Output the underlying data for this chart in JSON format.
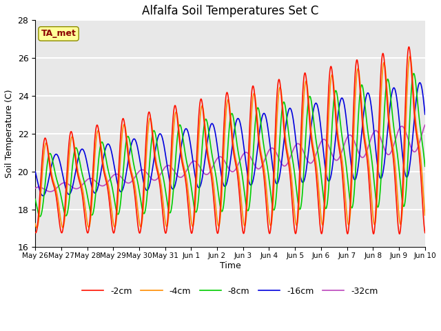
{
  "title": "Alfalfa Soil Temperatures Set C",
  "xlabel": "Time",
  "ylabel": "Soil Temperature (C)",
  "ylim": [
    16,
    28
  ],
  "annotation": "TA_met",
  "annotation_color": "#8B0000",
  "annotation_bg": "#FFFF99",
  "annotation_edge": "#8B8B00",
  "plot_bg": "#E8E8E8",
  "fig_bg": "#FFFFFF",
  "grid_color": "#FFFFFF",
  "series": {
    "-2cm": {
      "color": "#FF1100",
      "lw": 1.2
    },
    "-4cm": {
      "color": "#FF8C00",
      "lw": 1.2
    },
    "-8cm": {
      "color": "#00CC00",
      "lw": 1.2
    },
    "-16cm": {
      "color": "#0000DD",
      "lw": 1.2
    },
    "-32cm": {
      "color": "#BB44BB",
      "lw": 1.2
    }
  },
  "xtick_labels": [
    "May 26",
    "May 27",
    "May 28",
    "May 29",
    "May 30",
    "May 31",
    "Jun 1",
    "Jun 2",
    "Jun 3",
    "Jun 4",
    "Jun 5",
    "Jun 6",
    "Jun 7",
    "Jun 8",
    "Jun 9",
    "Jun 10"
  ],
  "xtick_positions": [
    0,
    1,
    2,
    3,
    4,
    5,
    6,
    7,
    8,
    9,
    10,
    11,
    12,
    13,
    14,
    15
  ]
}
